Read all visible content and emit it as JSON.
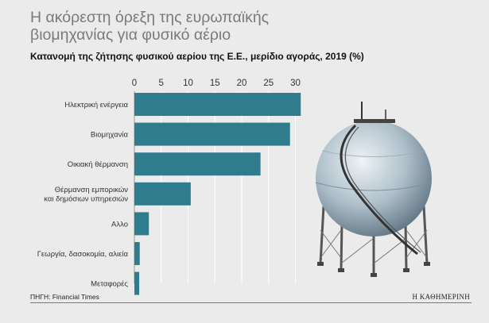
{
  "header": {
    "title": "Η ακόρεστη όρεξη της ευρωπαϊκής βιομηχανίας για φυσικό αέριο",
    "subtitle": "Κατανομή της ζήτησης φυσικού αερίου της Ε.Ε., μερίδιο αγοράς, 2019 (%)"
  },
  "footer": {
    "source": "ΠΗΓΗ: Financial Times",
    "brand": "Η ΚΑΘΗΜΕΡΙΝΗ"
  },
  "colors": {
    "bar": "#2f7d8c",
    "gridline": "#ffffff",
    "text": "#333333"
  },
  "chart_data": {
    "type": "bar",
    "orientation": "horizontal",
    "title": "Κατανομή της ζήτησης φυσικού αερίου της Ε.Ε., μερίδιο αγοράς, 2019 (%)",
    "categories": [
      "Ηλεκτρική ενέργεια",
      "Βιομηχανία",
      "Οικιακή θέρμανση",
      "Θέρμανση εμπορικών και δημόσιων υπηρεσιών",
      "Αλλο",
      "Γεωργία, δασοκομία, αλιεία",
      "Μεταφορές"
    ],
    "values": [
      31,
      29,
      23.5,
      10.5,
      2.7,
      1.0,
      0.9
    ],
    "xlim": [
      0,
      31
    ],
    "xticks": [
      0,
      5,
      10,
      15,
      20,
      25,
      30
    ],
    "grid": true,
    "axis_position": "top"
  }
}
